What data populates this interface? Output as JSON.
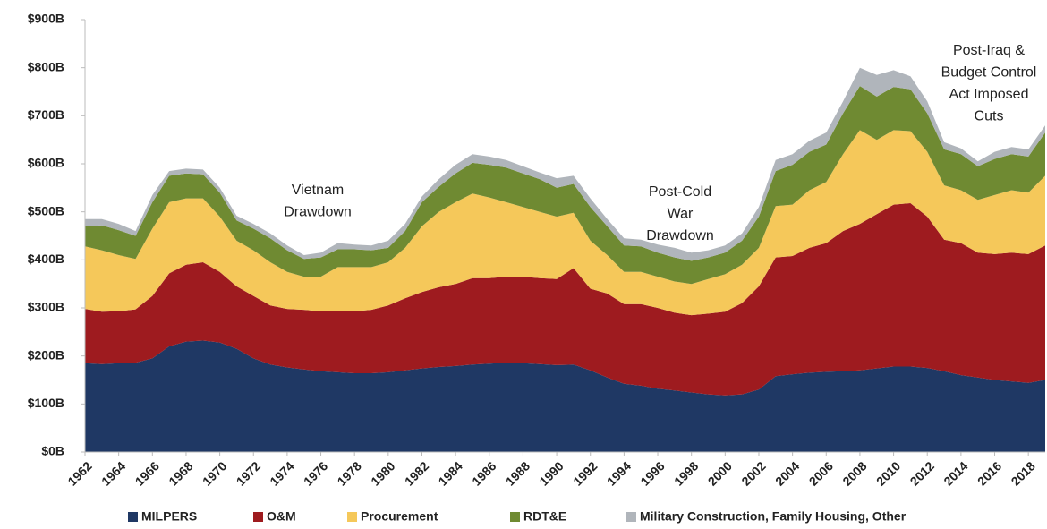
{
  "chart_data": {
    "type": "stacked_area",
    "x": [
      1962,
      1963,
      1964,
      1965,
      1966,
      1967,
      1968,
      1969,
      1970,
      1971,
      1972,
      1973,
      1974,
      1975,
      1976,
      1977,
      1978,
      1979,
      1980,
      1981,
      1982,
      1983,
      1984,
      1985,
      1986,
      1987,
      1988,
      1989,
      1990,
      1991,
      1992,
      1993,
      1994,
      1995,
      1996,
      1997,
      1998,
      1999,
      2000,
      2001,
      2002,
      2003,
      2004,
      2005,
      2006,
      2007,
      2008,
      2009,
      2010,
      2011,
      2012,
      2013,
      2014,
      2015,
      2016,
      2017,
      2018,
      2019
    ],
    "xlim": [
      1962,
      2019
    ],
    "xticks": [
      1962,
      1964,
      1966,
      1968,
      1970,
      1972,
      1974,
      1976,
      1978,
      1980,
      1982,
      1984,
      1986,
      1988,
      1990,
      1992,
      1994,
      1996,
      1998,
      2000,
      2002,
      2004,
      2006,
      2008,
      2010,
      2012,
      2014,
      2016,
      2018
    ],
    "ylim": [
      0,
      900
    ],
    "yticks": [
      {
        "value": 0,
        "label": "$0B"
      },
      {
        "value": 100,
        "label": "$100B"
      },
      {
        "value": 200,
        "label": "$200B"
      },
      {
        "value": 300,
        "label": "$300B"
      },
      {
        "value": 400,
        "label": "$400B"
      },
      {
        "value": 500,
        "label": "$500B"
      },
      {
        "value": 600,
        "label": "$600B"
      },
      {
        "value": 700,
        "label": "$700B"
      },
      {
        "value": 800,
        "label": "$800B"
      },
      {
        "value": 900,
        "label": "$900B"
      }
    ],
    "grid": false,
    "legend": "bottom",
    "series": [
      {
        "name": "MILPERS",
        "color": "#1f3864",
        "values": [
          185,
          183,
          185,
          186,
          195,
          220,
          230,
          232,
          228,
          215,
          195,
          182,
          176,
          172,
          168,
          166,
          164,
          164,
          166,
          170,
          174,
          177,
          179,
          182,
          184,
          186,
          185,
          183,
          181,
          182,
          170,
          155,
          142,
          138,
          132,
          128,
          124,
          120,
          118,
          120,
          130,
          158,
          162,
          165,
          167,
          168,
          170,
          174,
          178,
          178,
          175,
          168,
          160,
          155,
          150,
          147,
          144,
          150
        ]
      },
      {
        "name": "O&M",
        "color": "#9e1b1f",
        "values": [
          113,
          109,
          108,
          111,
          130,
          152,
          160,
          163,
          147,
          130,
          130,
          123,
          122,
          124,
          125,
          127,
          129,
          132,
          139,
          150,
          159,
          166,
          171,
          180,
          178,
          179,
          180,
          179,
          179,
          201,
          170,
          175,
          166,
          170,
          168,
          162,
          161,
          168,
          174,
          190,
          215,
          247,
          246,
          260,
          268,
          292,
          305,
          321,
          337,
          340,
          315,
          274,
          275,
          260,
          262,
          268,
          268,
          280
        ]
      },
      {
        "name": "Procurement",
        "color": "#f5c85a",
        "values": [
          130,
          128,
          117,
          105,
          140,
          148,
          138,
          133,
          115,
          95,
          95,
          90,
          77,
          69,
          72,
          92,
          92,
          89,
          90,
          105,
          137,
          157,
          170,
          176,
          168,
          155,
          145,
          138,
          130,
          115,
          100,
          80,
          67,
          67,
          65,
          65,
          65,
          72,
          78,
          80,
          80,
          107,
          107,
          120,
          127,
          160,
          195,
          155,
          155,
          150,
          135,
          113,
          110,
          110,
          123,
          130,
          128,
          145
        ]
      },
      {
        "name": "RDT&E",
        "color": "#6f8a32",
        "values": [
          42,
          52,
          52,
          48,
          55,
          55,
          52,
          50,
          50,
          42,
          45,
          50,
          45,
          37,
          40,
          37,
          37,
          35,
          30,
          35,
          50,
          52,
          60,
          64,
          68,
          72,
          70,
          68,
          60,
          60,
          70,
          60,
          55,
          53,
          50,
          50,
          48,
          45,
          45,
          50,
          65,
          73,
          83,
          80,
          78,
          85,
          92,
          90,
          90,
          87,
          80,
          75,
          75,
          70,
          75,
          75,
          75,
          90
        ]
      },
      {
        "name": "Military Construction, Family Housing, Other",
        "color": "#b0b5bb",
        "values": [
          15,
          13,
          13,
          10,
          15,
          10,
          10,
          10,
          10,
          10,
          10,
          10,
          10,
          8,
          10,
          13,
          10,
          10,
          15,
          15,
          12,
          16,
          18,
          18,
          17,
          16,
          15,
          14,
          20,
          17,
          18,
          15,
          15,
          14,
          17,
          20,
          17,
          15,
          15,
          15,
          20,
          23,
          22,
          23,
          25,
          25,
          38,
          45,
          35,
          27,
          25,
          15,
          12,
          10,
          15,
          15,
          15,
          15
        ]
      }
    ],
    "annotations": [
      [
        "Vietnam",
        "Drawdown"
      ],
      [
        "Post-Cold",
        "War",
        "Drawdown"
      ],
      [
        "Post-Iraq &",
        "Budget Control",
        "Act Imposed",
        "Cuts"
      ]
    ]
  }
}
